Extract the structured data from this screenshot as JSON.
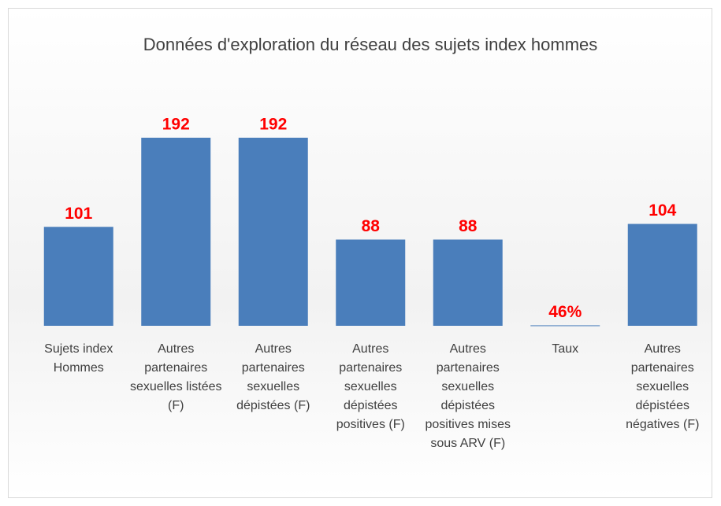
{
  "chart_data": {
    "type": "bar",
    "title": "Données d'exploration du réseau des sujets index hommes",
    "categories": [
      "Sujets index Hommes",
      "Autres partenaires sexuelles listées (F)",
      "Autres partenaires sexuelles dépistées (F)",
      "Autres partenaires sexuelles dépistées positives (F)",
      "Autres partenaires sexuelles dépistées positives mises sous ARV (F)",
      "Taux",
      "Autres partenaires sexuelles dépistées négatives (F)"
    ],
    "values": [
      101,
      192,
      192,
      88,
      88,
      0.46,
      104
    ],
    "value_labels": [
      "101",
      "192",
      "192",
      "88",
      "88",
      "46%",
      "104"
    ],
    "color": "#4a7ebb"
  }
}
